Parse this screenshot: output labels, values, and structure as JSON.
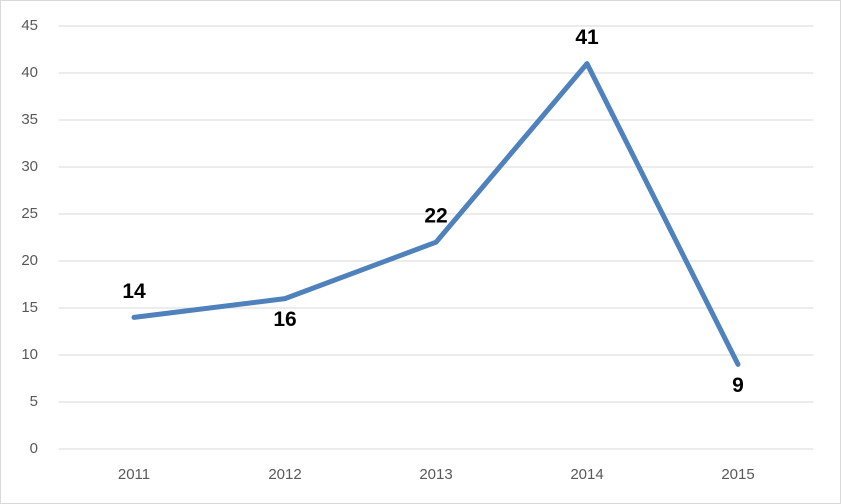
{
  "chart_data": {
    "type": "line",
    "categories": [
      "2011",
      "2012",
      "2013",
      "2014",
      "2015"
    ],
    "values": [
      14,
      16,
      22,
      41,
      9
    ],
    "color": "#4f81bd",
    "ylim": [
      0,
      45
    ],
    "yticks": [
      0,
      5,
      10,
      15,
      20,
      25,
      30,
      35,
      40,
      45
    ],
    "grid": true
  }
}
